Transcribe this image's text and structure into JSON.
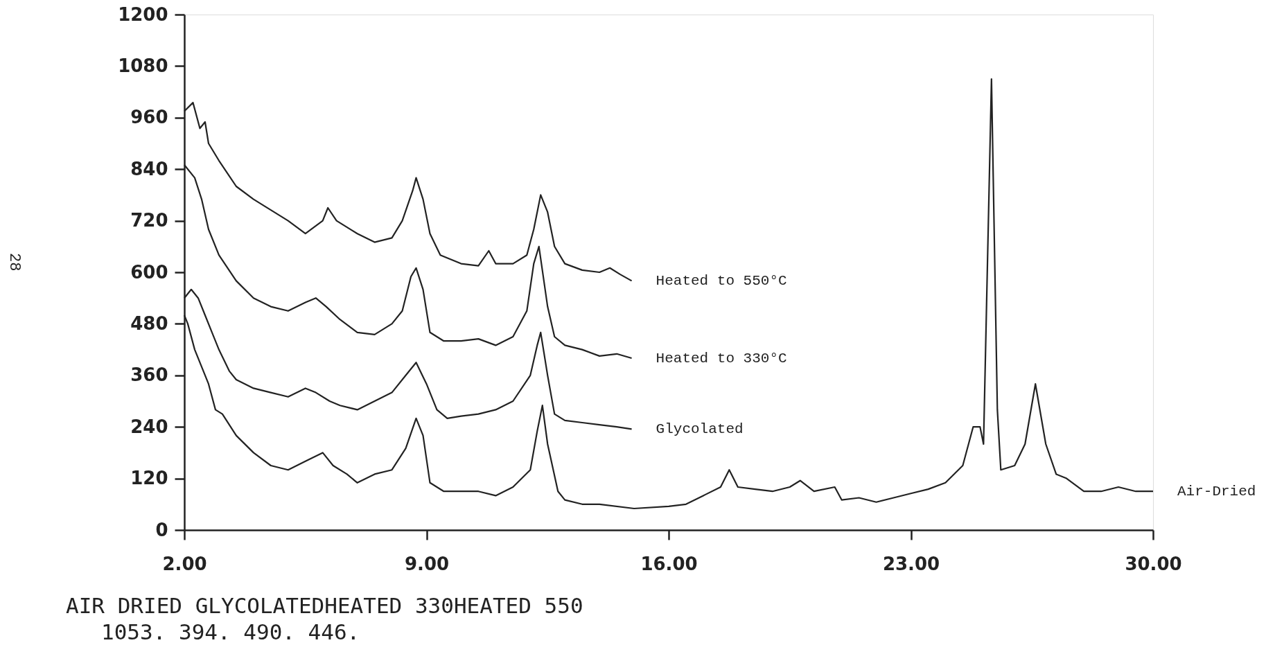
{
  "chart_data": {
    "type": "line",
    "xlim": [
      2,
      30
    ],
    "ylim": [
      0,
      1200
    ],
    "xticks": [
      {
        "value": 2,
        "label": "2.00"
      },
      {
        "value": 9,
        "label": "9.00"
      },
      {
        "value": 16,
        "label": "16.00"
      },
      {
        "value": 23,
        "label": "23.00"
      },
      {
        "value": 30,
        "label": "30.00"
      }
    ],
    "yticks": [
      0,
      120,
      240,
      360,
      480,
      600,
      720,
      840,
      960,
      1080,
      1200
    ],
    "grid": false,
    "line_style": "solid",
    "marker": "none",
    "annotations": [
      "28",
      "AIR DRIED GLYCOLATEDHEATED 330HEATED 550",
      "1053.      394.      490.      446."
    ],
    "series": [
      {
        "name": "Heated to 550°C",
        "color": "#222222",
        "x": [
          2.0,
          2.25,
          2.45,
          2.6,
          2.7,
          3.0,
          3.5,
          4.0,
          4.5,
          5.0,
          5.5,
          6.0,
          6.15,
          6.4,
          7.0,
          7.5,
          8.0,
          8.3,
          8.6,
          8.7,
          8.9,
          9.1,
          9.4,
          10.0,
          10.5,
          10.8,
          11.0,
          11.5,
          11.9,
          12.1,
          12.3,
          12.5,
          12.7,
          13.0,
          13.5,
          14.0,
          14.3,
          14.6,
          14.93
        ],
        "values": [
          975,
          995,
          935,
          950,
          900,
          860,
          800,
          770,
          745,
          720,
          690,
          720,
          750,
          720,
          690,
          670,
          680,
          720,
          790,
          820,
          770,
          690,
          640,
          620,
          615,
          650,
          620,
          620,
          640,
          700,
          780,
          740,
          660,
          620,
          605,
          600,
          610,
          595,
          580
        ]
      },
      {
        "name": "Heated to 330°C",
        "color": "#222222",
        "x": [
          2.0,
          2.3,
          2.5,
          2.7,
          3.0,
          3.5,
          4.0,
          4.5,
          5.0,
          5.5,
          5.8,
          6.1,
          6.5,
          7.0,
          7.5,
          8.0,
          8.3,
          8.55,
          8.7,
          8.9,
          9.1,
          9.5,
          10.0,
          10.5,
          11.0,
          11.5,
          11.9,
          12.1,
          12.25,
          12.5,
          12.7,
          13.0,
          13.5,
          14.0,
          14.5,
          14.93
        ],
        "values": [
          850,
          820,
          770,
          700,
          640,
          580,
          540,
          520,
          510,
          530,
          540,
          520,
          490,
          460,
          455,
          480,
          510,
          590,
          610,
          560,
          460,
          440,
          440,
          445,
          430,
          450,
          510,
          620,
          660,
          520,
          450,
          430,
          420,
          405,
          410,
          400
        ]
      },
      {
        "name": "Glycolated",
        "color": "#222222",
        "x": [
          2.0,
          2.2,
          2.4,
          2.6,
          2.8,
          3.0,
          3.3,
          3.5,
          4.0,
          4.5,
          5.0,
          5.5,
          5.8,
          6.2,
          6.5,
          7.0,
          7.5,
          8.0,
          8.4,
          8.7,
          9.0,
          9.3,
          9.6,
          10.0,
          10.5,
          11.0,
          11.5,
          12.0,
          12.2,
          12.3,
          12.5,
          12.7,
          13.0,
          13.5,
          14.0,
          14.5,
          14.93
        ],
        "values": [
          540,
          560,
          540,
          500,
          460,
          420,
          370,
          350,
          330,
          320,
          310,
          330,
          320,
          300,
          290,
          280,
          300,
          320,
          360,
          390,
          340,
          280,
          260,
          265,
          270,
          280,
          300,
          360,
          430,
          460,
          360,
          270,
          255,
          250,
          245,
          240,
          235
        ]
      },
      {
        "name": "Air-Dried",
        "color": "#222222",
        "x": [
          2.0,
          2.1,
          2.3,
          2.5,
          2.7,
          2.9,
          3.1,
          3.5,
          4.0,
          4.5,
          5.0,
          5.5,
          6.0,
          6.3,
          6.7,
          7.0,
          7.5,
          8.0,
          8.4,
          8.7,
          8.9,
          9.1,
          9.5,
          10.0,
          10.5,
          11.0,
          11.5,
          12.0,
          12.2,
          12.35,
          12.5,
          12.8,
          13.0,
          13.5,
          14.0,
          15.0,
          16.0,
          16.5,
          17.0,
          17.5,
          17.75,
          18.0,
          18.5,
          19.0,
          19.5,
          19.8,
          20.2,
          20.8,
          21.0,
          21.5,
          22.0,
          22.5,
          23.0,
          23.5,
          24.0,
          24.5,
          24.8,
          25.0,
          25.1,
          25.33,
          25.5,
          25.6,
          26.0,
          26.3,
          26.6,
          26.9,
          27.2,
          27.5,
          28.0,
          28.5,
          29.0,
          29.5,
          30.0
        ],
        "values": [
          500,
          480,
          420,
          380,
          340,
          280,
          270,
          220,
          180,
          150,
          140,
          160,
          180,
          150,
          130,
          110,
          130,
          140,
          190,
          260,
          220,
          110,
          90,
          90,
          90,
          80,
          100,
          140,
          230,
          290,
          200,
          90,
          70,
          60,
          60,
          50,
          55,
          60,
          80,
          100,
          140,
          100,
          95,
          90,
          100,
          115,
          90,
          100,
          70,
          75,
          65,
          75,
          85,
          95,
          110,
          150,
          240,
          240,
          200,
          1050,
          280,
          140,
          150,
          200,
          340,
          200,
          130,
          120,
          90,
          90,
          100,
          90,
          90
        ]
      }
    ]
  }
}
